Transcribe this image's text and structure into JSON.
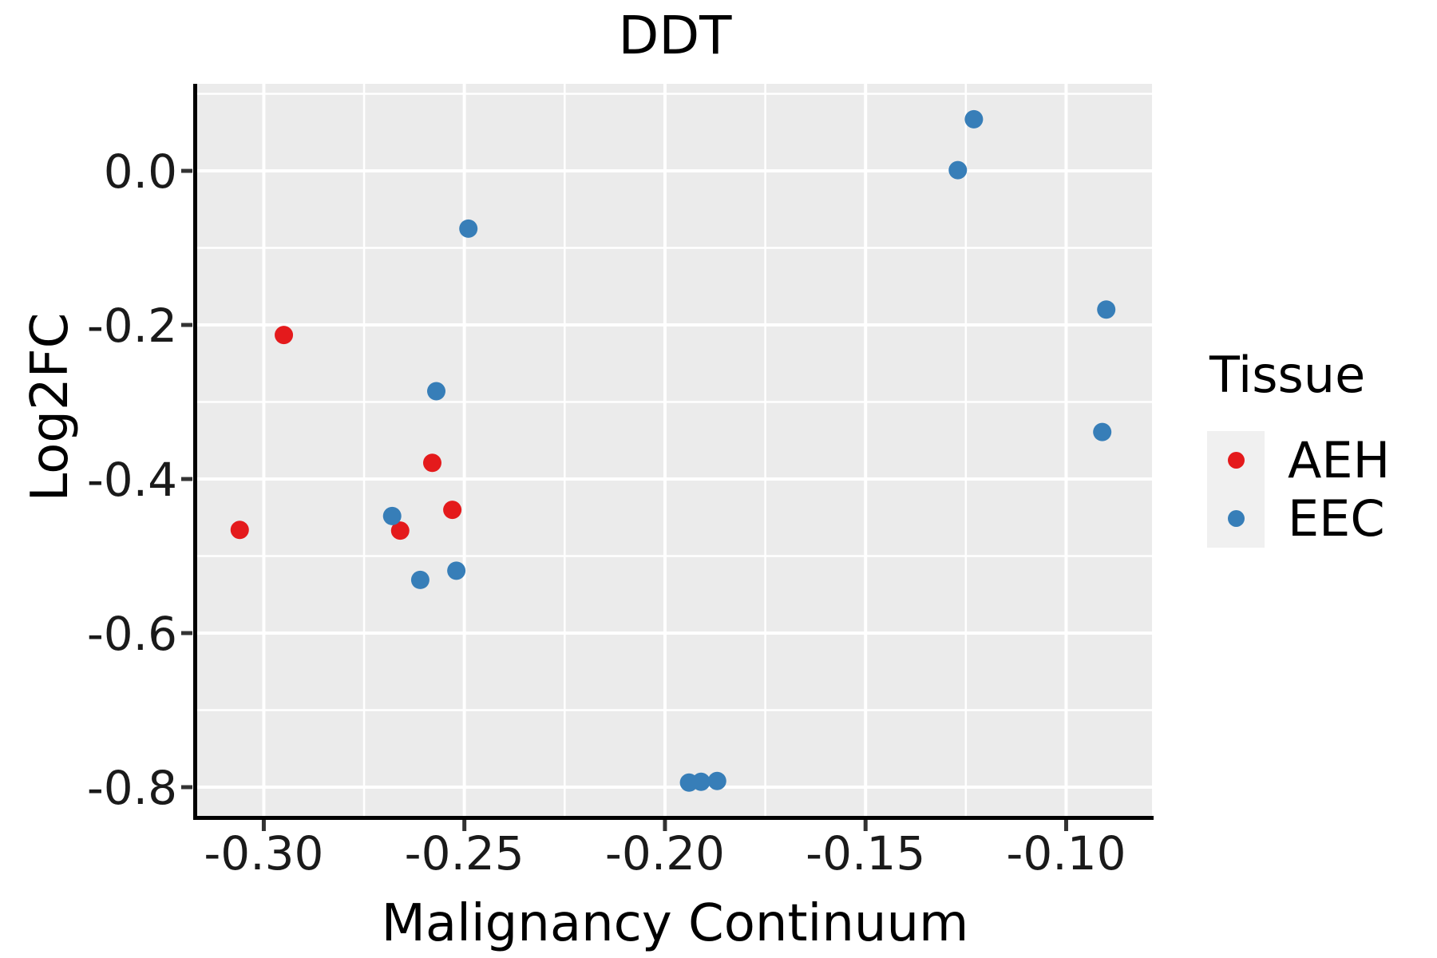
{
  "chart_data": {
    "type": "scatter",
    "title": "DDT",
    "xlabel": "Malignancy Continuum",
    "ylabel": "Log2FC",
    "xlim": [
      -0.3168,
      -0.0786
    ],
    "ylim": [
      -0.8373,
      0.113
    ],
    "x_major_ticks": [
      -0.3,
      -0.25,
      -0.2,
      -0.15,
      -0.1
    ],
    "x_tick_labels": [
      "-0.30",
      "-0.25",
      "-0.20",
      "-0.15",
      "-0.10"
    ],
    "x_minor_ticks": [
      -0.275,
      -0.225,
      -0.175,
      -0.125
    ],
    "y_major_ticks": [
      0.0,
      -0.2,
      -0.4,
      -0.6,
      -0.8
    ],
    "y_tick_labels": [
      "0.0",
      "-0.2",
      "-0.4",
      "-0.6",
      "-0.8"
    ],
    "y_minor_ticks": [
      0.1,
      -0.1,
      -0.3,
      -0.5,
      -0.7
    ],
    "grid": "white major and minor gridlines on gray panel",
    "legend_position": "right",
    "series": [
      {
        "name": "AEH",
        "color": "#E41A1C",
        "points": [
          [
            -0.306,
            -0.466
          ],
          [
            -0.295,
            -0.213
          ],
          [
            -0.266,
            -0.467
          ],
          [
            -0.258,
            -0.379
          ],
          [
            -0.253,
            -0.44
          ]
        ]
      },
      {
        "name": "EEC",
        "color": "#377EB8",
        "points": [
          [
            -0.268,
            -0.448
          ],
          [
            -0.261,
            -0.531
          ],
          [
            -0.257,
            -0.286
          ],
          [
            -0.252,
            -0.519
          ],
          [
            -0.249,
            -0.075
          ],
          [
            -0.194,
            -0.794
          ],
          [
            -0.191,
            -0.793
          ],
          [
            -0.187,
            -0.792
          ],
          [
            -0.127,
            0.001
          ],
          [
            -0.123,
            0.067
          ],
          [
            -0.091,
            -0.339
          ],
          [
            -0.09,
            -0.18
          ]
        ]
      }
    ]
  },
  "legend": {
    "title": "Tissue",
    "items": [
      {
        "label": "AEH",
        "color": "#E41A1C"
      },
      {
        "label": "EEC",
        "color": "#377EB8"
      }
    ]
  },
  "style": {
    "panel_bg": "#EBEBEB",
    "grid_color": "#FFFFFF",
    "legend_key_bg": "#F0F0F0",
    "axis_color": "#000000",
    "tick_label_color": "#1a1a1a",
    "point_radius": 11.5,
    "legend_dot_radius": 10.5
  }
}
